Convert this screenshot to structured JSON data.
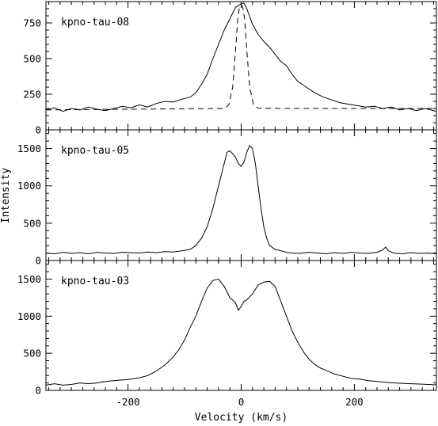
{
  "figure": {
    "xlabel": "Velocity (km/s)",
    "ylabel": "Intensity",
    "xlim": [
      -345,
      345
    ],
    "xticks": [
      -200,
      0,
      200
    ],
    "minor_x_step": 20
  },
  "chart_data": [
    {
      "type": "line",
      "title": "kpno-tau-08",
      "xlabel": "Velocity (km/s)",
      "ylabel": "Intensity",
      "xlim": [
        -345,
        345
      ],
      "ylim": [
        0,
        900
      ],
      "yticks": [
        0,
        250,
        500,
        750
      ],
      "minor_y_step": 50,
      "series": [
        {
          "style": "solid",
          "x": [
            -345,
            -330,
            -315,
            -300,
            -285,
            -270,
            -255,
            -240,
            -225,
            -210,
            -195,
            -180,
            -165,
            -150,
            -135,
            -120,
            -105,
            -90,
            -80,
            -70,
            -60,
            -50,
            -40,
            -30,
            -20,
            -10,
            0,
            5,
            10,
            20,
            30,
            40,
            50,
            60,
            70,
            80,
            90,
            100,
            115,
            130,
            145,
            160,
            175,
            190,
            205,
            220,
            235,
            250,
            265,
            280,
            295,
            310,
            325,
            345
          ],
          "y": [
            140,
            155,
            130,
            150,
            140,
            160,
            145,
            135,
            150,
            165,
            155,
            175,
            160,
            185,
            200,
            195,
            215,
            230,
            260,
            320,
            390,
            500,
            600,
            700,
            780,
            860,
            885,
            890,
            850,
            740,
            670,
            620,
            580,
            530,
            480,
            450,
            390,
            340,
            300,
            260,
            230,
            210,
            190,
            180,
            170,
            160,
            165,
            150,
            160,
            140,
            150,
            135,
            150,
            130
          ]
        },
        {
          "style": "dashed",
          "x": [
            -345,
            -200,
            -100,
            -30,
            -22,
            -15,
            -10,
            -6,
            -3,
            0,
            3,
            6,
            10,
            15,
            22,
            30,
            100,
            200,
            345
          ],
          "y": [
            140,
            145,
            148,
            150,
            175,
            300,
            560,
            780,
            860,
            875,
            860,
            780,
            560,
            300,
            175,
            152,
            150,
            150,
            150
          ]
        }
      ]
    },
    {
      "type": "line",
      "title": "kpno-tau-05",
      "xlabel": "Velocity (km/s)",
      "ylabel": "Intensity",
      "xlim": [
        -345,
        345
      ],
      "ylim": [
        0,
        1750
      ],
      "yticks": [
        0,
        500,
        1000,
        1500
      ],
      "minor_y_step": 100,
      "series": [
        {
          "style": "solid",
          "x": [
            -345,
            -330,
            -315,
            -300,
            -285,
            -270,
            -255,
            -240,
            -225,
            -210,
            -195,
            -180,
            -165,
            -150,
            -135,
            -120,
            -105,
            -90,
            -80,
            -70,
            -60,
            -50,
            -40,
            -30,
            -25,
            -20,
            -15,
            -10,
            -5,
            0,
            5,
            10,
            15,
            20,
            25,
            30,
            35,
            40,
            45,
            50,
            60,
            70,
            80,
            90,
            105,
            120,
            135,
            150,
            165,
            180,
            195,
            210,
            225,
            240,
            250,
            255,
            260,
            270,
            285,
            300,
            315,
            330,
            345
          ],
          "y": [
            100,
            90,
            110,
            95,
            105,
            90,
            110,
            100,
            95,
            110,
            105,
            100,
            115,
            105,
            120,
            115,
            130,
            150,
            200,
            300,
            450,
            700,
            1000,
            1300,
            1450,
            1470,
            1430,
            1380,
            1300,
            1260,
            1320,
            1450,
            1540,
            1500,
            1300,
            1000,
            700,
            450,
            300,
            200,
            150,
            130,
            110,
            100,
            95,
            110,
            100,
            90,
            105,
            95,
            110,
            100,
            95,
            110,
            140,
            180,
            130,
            100,
            90,
            105,
            95,
            100,
            90
          ]
        }
      ]
    },
    {
      "type": "line",
      "title": "kpno-tau-03",
      "xlabel": "Velocity (km/s)",
      "ylabel": "Intensity",
      "xlim": [
        -345,
        345
      ],
      "ylim": [
        0,
        1750
      ],
      "yticks": [
        0,
        500,
        1000,
        1500
      ],
      "minor_y_step": 100,
      "series": [
        {
          "style": "solid",
          "x": [
            -345,
            -330,
            -315,
            -300,
            -285,
            -270,
            -255,
            -240,
            -225,
            -210,
            -195,
            -180,
            -165,
            -150,
            -135,
            -120,
            -110,
            -100,
            -90,
            -80,
            -70,
            -60,
            -50,
            -40,
            -30,
            -20,
            -10,
            -5,
            0,
            5,
            10,
            20,
            30,
            40,
            50,
            60,
            70,
            80,
            90,
            100,
            110,
            120,
            130,
            140,
            150,
            165,
            180,
            195,
            210,
            225,
            240,
            255,
            270,
            285,
            300,
            315,
            330,
            345
          ],
          "y": [
            70,
            90,
            70,
            80,
            100,
            90,
            100,
            120,
            130,
            140,
            150,
            170,
            200,
            260,
            340,
            450,
            550,
            680,
            850,
            1000,
            1200,
            1380,
            1480,
            1500,
            1400,
            1250,
            1180,
            1080,
            1130,
            1200,
            1220,
            1300,
            1420,
            1460,
            1470,
            1400,
            1200,
            1000,
            800,
            650,
            520,
            420,
            350,
            300,
            270,
            220,
            190,
            160,
            150,
            130,
            120,
            110,
            100,
            95,
            90,
            85,
            80,
            75
          ]
        }
      ]
    }
  ]
}
